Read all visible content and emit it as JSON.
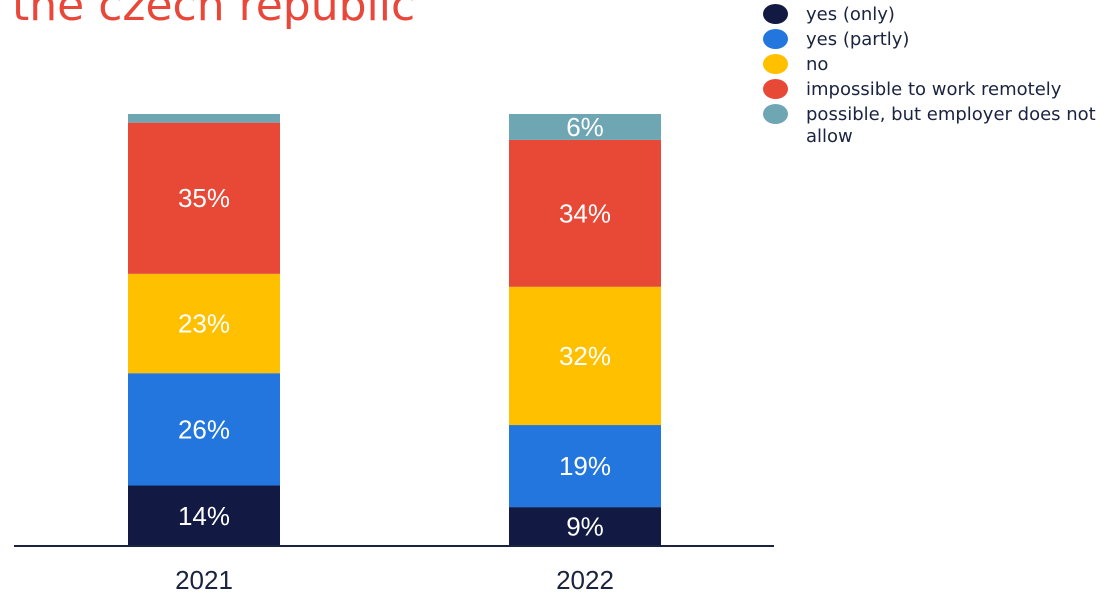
{
  "title": "the czech republic",
  "chart_data": {
    "type": "bar",
    "stacked": true,
    "categories": [
      "2021",
      "2022"
    ],
    "series": [
      {
        "name": "yes (only)",
        "color": "#121a44",
        "values": [
          14,
          9
        ],
        "labels": [
          "14%",
          "9%"
        ]
      },
      {
        "name": "yes (partly)",
        "color": "#2276dd",
        "values": [
          26,
          19
        ],
        "labels": [
          "26%",
          "19%"
        ]
      },
      {
        "name": "no",
        "color": "#ffc000",
        "values": [
          23,
          32
        ],
        "labels": [
          "23%",
          "32%"
        ]
      },
      {
        "name": "impossible to work remotely",
        "color": "#e84836",
        "values": [
          35,
          34
        ],
        "labels": [
          "35%",
          "34%"
        ]
      },
      {
        "name": "possible, but employer does not allow",
        "color": "#6fa6b4",
        "values": [
          2,
          6
        ],
        "labels": [
          "",
          "6%"
        ]
      }
    ],
    "ylim": [
      0,
      100
    ],
    "legend_position": "top-right"
  }
}
